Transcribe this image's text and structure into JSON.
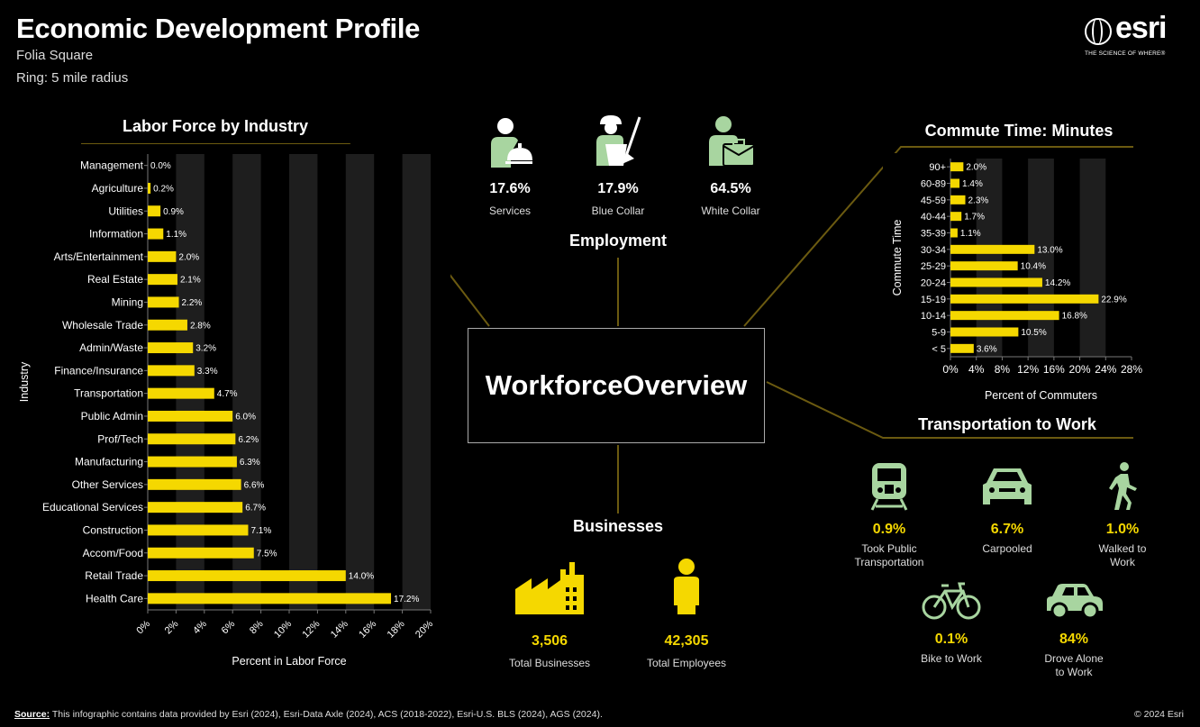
{
  "header": {
    "title": "Economic Development Profile",
    "location": "Folia Square",
    "ring": "Ring: 5 mile radius",
    "logo_word": "esri",
    "logo_tagline": "THE SCIENCE OF WHERE®"
  },
  "center": {
    "title": "WorkforceOverview"
  },
  "employment": {
    "title": "Employment",
    "items": [
      {
        "value": "17.6%",
        "label": "Services",
        "icon": "services-worker-icon"
      },
      {
        "value": "17.9%",
        "label": "Blue Collar",
        "icon": "blue-collar-worker-icon"
      },
      {
        "value": "64.5%",
        "label": "White Collar",
        "icon": "white-collar-worker-icon"
      }
    ]
  },
  "businesses": {
    "title": "Businesses",
    "items": [
      {
        "value": "3,506",
        "label": "Total Businesses",
        "icon": "factory-icon"
      },
      {
        "value": "42,305",
        "label": "Total Employees",
        "icon": "person-icon"
      }
    ]
  },
  "transportation": {
    "title": "Transportation to Work",
    "items": [
      {
        "value": "0.9%",
        "label": "Took Public Transportation",
        "icon": "train-icon"
      },
      {
        "value": "6.7%",
        "label": "Carpooled",
        "icon": "carpool-car-icon"
      },
      {
        "value": "1.0%",
        "label": "Walked to Work",
        "icon": "walking-person-icon"
      },
      {
        "value": "0.1%",
        "label": "Bike to Work",
        "icon": "bicycle-icon"
      },
      {
        "value": "84%",
        "label": "Drove Alone to Work",
        "icon": "car-icon"
      }
    ]
  },
  "chart_data": [
    {
      "type": "bar",
      "orientation": "horizontal",
      "title": "Labor Force by Industry",
      "xlabel": "Percent in Labor Force",
      "ylabel": "Industry",
      "xlim": [
        0,
        20
      ],
      "xticks": [
        "0%",
        "2%",
        "4%",
        "6%",
        "8%",
        "10%",
        "12%",
        "14%",
        "16%",
        "18%",
        "20%"
      ],
      "categories": [
        "Management",
        "Agriculture",
        "Utilities",
        "Information",
        "Arts/Entertainment",
        "Real Estate",
        "Mining",
        "Wholesale Trade",
        "Admin/Waste",
        "Finance/Insurance",
        "Transportation",
        "Public Admin",
        "Prof/Tech",
        "Manufacturing",
        "Other Services",
        "Educational Services",
        "Construction",
        "Accom/Food",
        "Retail Trade",
        "Health Care"
      ],
      "values": [
        0.0,
        0.2,
        0.9,
        1.1,
        2.0,
        2.1,
        2.2,
        2.8,
        3.2,
        3.3,
        4.7,
        6.0,
        6.2,
        6.3,
        6.6,
        6.7,
        7.1,
        7.5,
        14.0,
        17.2
      ],
      "labels": [
        "0.0%",
        "0.2%",
        "0.9%",
        "1.1%",
        "2.0%",
        "2.1%",
        "2.2%",
        "2.8%",
        "3.2%",
        "3.3%",
        "4.7%",
        "6.0%",
        "6.2%",
        "6.3%",
        "6.6%",
        "6.7%",
        "7.1%",
        "7.5%",
        "14.0%",
        "17.2%"
      ],
      "bar_color": "#f5d800"
    },
    {
      "type": "bar",
      "orientation": "horizontal",
      "title": "Commute Time: Minutes",
      "xlabel": "Percent of Commuters",
      "ylabel": "Commute Time",
      "xlim": [
        0,
        28
      ],
      "xticks": [
        "0%",
        "4%",
        "8%",
        "12%",
        "16%",
        "20%",
        "24%",
        "28%"
      ],
      "categories": [
        "90+",
        "60-89",
        "45-59",
        "40-44",
        "35-39",
        "30-34",
        "25-29",
        "20-24",
        "15-19",
        "10-14",
        "5-9",
        "< 5"
      ],
      "values": [
        2.0,
        1.4,
        2.3,
        1.7,
        1.1,
        13.0,
        10.4,
        14.2,
        22.9,
        16.8,
        10.5,
        3.6
      ],
      "labels": [
        "2.0%",
        "1.4%",
        "2.3%",
        "1.7%",
        "1.1%",
        "13.0%",
        "10.4%",
        "14.2%",
        "22.9%",
        "16.8%",
        "10.5%",
        "3.6%"
      ],
      "bar_color": "#f5d800"
    }
  ],
  "footer": {
    "source_label": "Source:",
    "source_text": " This infographic contains data provided by Esri (2024), Esri-Data Axle (2024), ACS (2018-2022), Esri-U.S. BLS (2024), AGS (2024).",
    "copyright": "© 2024 Esri"
  },
  "colors": {
    "accent": "#f5d800",
    "icon_green": "#a8d5a0",
    "connector": "#6b5a10"
  }
}
